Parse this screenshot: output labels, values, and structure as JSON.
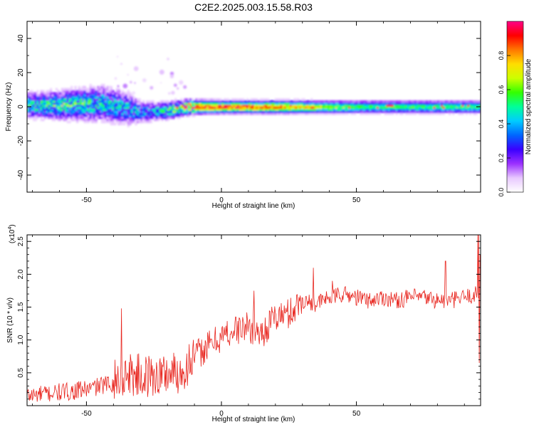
{
  "figure": {
    "title": "C2E2.2025.003.15.58.R03"
  },
  "chart_data": [
    {
      "type": "heatmap",
      "xlabel": "Height of straight line (km)",
      "ylabel": "Frequency (Hz)",
      "xlim": [
        -72,
        96
      ],
      "ylim": [
        -50,
        50
      ],
      "xticks": [
        -50,
        0,
        50
      ],
      "yticks": [
        -40,
        -20,
        0,
        20,
        40
      ],
      "colorbar": {
        "label": "Normalized spectral amplitude",
        "range": [
          0,
          1
        ],
        "ticks": [
          0.0,
          0.2,
          0.4,
          0.6,
          0.8
        ],
        "colormap": [
          "#ffffff",
          "#e8c8ff",
          "#9b30ff",
          "#3a00ff",
          "#0066ff",
          "#00ccff",
          "#00ff99",
          "#33ff00",
          "#ccff00",
          "#ffdd00",
          "#ff7700",
          "#ff0000",
          "#ff0088"
        ]
      },
      "band": [
        {
          "x": -72,
          "center": 1,
          "width": 14,
          "peak": 0.45
        },
        {
          "x": -60,
          "center": 1,
          "width": 16,
          "peak": 0.5
        },
        {
          "x": -45,
          "center": 2,
          "width": 20,
          "peak": 0.45
        },
        {
          "x": -35,
          "center": -1,
          "width": 18,
          "peak": 0.4
        },
        {
          "x": -30,
          "center": -3,
          "width": 12,
          "peak": 0.35
        },
        {
          "x": -20,
          "center": -2,
          "width": 10,
          "peak": 0.5
        },
        {
          "x": -12,
          "center": 0,
          "width": 8,
          "peak": 0.9
        },
        {
          "x": 0,
          "center": 0,
          "width": 7,
          "peak": 0.9
        },
        {
          "x": 20,
          "center": 0,
          "width": 7,
          "peak": 0.85
        },
        {
          "x": 50,
          "center": 0,
          "width": 7,
          "peak": 0.55
        },
        {
          "x": 96,
          "center": 0,
          "width": 7,
          "peak": 0.55
        }
      ]
    },
    {
      "type": "line",
      "xlabel": "Height of straight line (km)",
      "ylabel": "SNR (10 * v/v)",
      "yscale_label": "(x10",
      "yscale_exp": "4",
      "xlim": [
        -72,
        96
      ],
      "ylim": [
        0,
        2.6
      ],
      "xticks": [
        -50,
        0,
        50
      ],
      "yticks": [
        0.5,
        1.0,
        1.5,
        2.0,
        2.5
      ],
      "color": "#e8261f",
      "series": [
        {
          "x": [
            -72,
            -65,
            -60,
            -55,
            -50,
            -45,
            -40,
            -35,
            -30,
            -25,
            -20,
            -15,
            -10,
            -5,
            0,
            5,
            10,
            15,
            20,
            25,
            30,
            35,
            40,
            45,
            50,
            55,
            60,
            65,
            70,
            75,
            80,
            85,
            90,
            95
          ],
          "values": [
            0.15,
            0.18,
            0.2,
            0.22,
            0.25,
            0.3,
            0.35,
            0.5,
            0.45,
            0.45,
            0.5,
            0.5,
            0.75,
            0.9,
            1.05,
            1.15,
            1.2,
            1.1,
            1.35,
            1.4,
            1.6,
            1.55,
            1.65,
            1.7,
            1.65,
            1.6,
            1.65,
            1.6,
            1.65,
            1.65,
            1.6,
            1.6,
            1.65,
            1.7
          ]
        }
      ],
      "annotations": [
        {
          "x": -37,
          "value": 1.48
        },
        {
          "x": 12,
          "value": 1.75
        },
        {
          "x": 34,
          "value": 2.1
        },
        {
          "x": 41,
          "value": 1.9
        },
        {
          "x": 83,
          "value": 2.2
        },
        {
          "x": 95,
          "value": 2.6
        }
      ]
    }
  ]
}
